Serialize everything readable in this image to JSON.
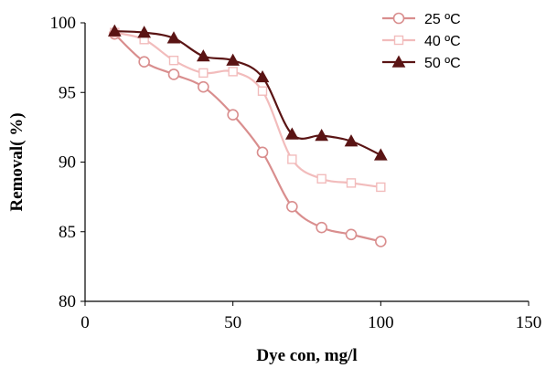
{
  "chart_data": {
    "type": "line",
    "xlabel": "Dye con, mg/l",
    "ylabel": "Removal( %)",
    "xlim": [
      0,
      150
    ],
    "ylim": [
      80,
      100
    ],
    "xticks": [
      0,
      50,
      100,
      150
    ],
    "yticks": [
      80,
      85,
      90,
      95,
      100
    ],
    "grid": false,
    "legend_position": "top-right",
    "x": [
      10,
      20,
      30,
      40,
      50,
      60,
      70,
      80,
      90,
      100
    ],
    "series": [
      {
        "name": "25 ºC",
        "marker": "circle",
        "color": "#d98e8e",
        "values": [
          99.2,
          97.2,
          96.3,
          95.4,
          93.4,
          90.7,
          86.8,
          85.3,
          84.8,
          84.3
        ]
      },
      {
        "name": "40 ºC",
        "marker": "square",
        "color": "#f2bcbc",
        "values": [
          99.3,
          98.8,
          97.3,
          96.4,
          96.5,
          95.1,
          90.2,
          88.8,
          88.5,
          88.2
        ]
      },
      {
        "name": "50 ºC",
        "marker": "triangle",
        "color": "#5a1414",
        "values": [
          99.4,
          99.3,
          98.9,
          97.6,
          97.3,
          96.1,
          92.0,
          91.9,
          91.5,
          90.5
        ]
      }
    ]
  }
}
